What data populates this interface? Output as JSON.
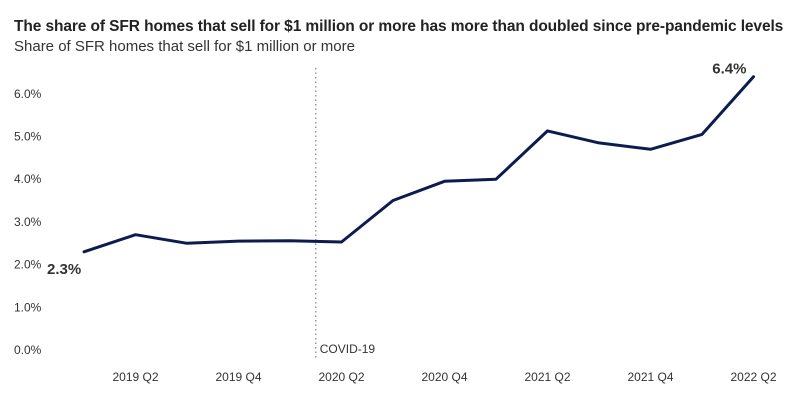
{
  "chart_data": {
    "type": "line",
    "title": "The share of SFR homes that sell for $1 million or more has more than doubled since pre-pandemic levels",
    "subtitle": "Share of SFR homes that sell for $1 million or more",
    "x": [
      "2019 Q1",
      "2019 Q2",
      "2019 Q3",
      "2019 Q4",
      "2020 Q1",
      "2020 Q2",
      "2020 Q3",
      "2020 Q4",
      "2021 Q1",
      "2021 Q2",
      "2021 Q3",
      "2021 Q4",
      "2022 Q1",
      "2022 Q2"
    ],
    "x_tick_labels": [
      "2019 Q2",
      "2019 Q4",
      "2020 Q2",
      "2020 Q4",
      "2021 Q2",
      "2021 Q4",
      "2022 Q2"
    ],
    "series": [
      {
        "values": [
          2.3,
          2.7,
          2.5,
          2.55,
          2.56,
          2.53,
          3.5,
          3.95,
          4.0,
          5.13,
          4.85,
          4.7,
          5.05,
          6.4
        ],
        "color": "#0c1c4f"
      }
    ],
    "ylim": [
      0,
      6.6
    ],
    "y_ticks": [
      "0.0%",
      "1.0%",
      "2.0%",
      "3.0%",
      "4.0%",
      "5.0%",
      "6.0%"
    ],
    "y_tick_values": [
      0,
      1,
      2,
      3,
      4,
      5,
      6
    ],
    "annotation": {
      "label": "COVID-19",
      "x": "2020 Q2",
      "style": "dotted-vertical"
    },
    "data_labels": [
      {
        "x": "2019 Q1",
        "text": "2.3%"
      },
      {
        "x": "2022 Q2",
        "text": "6.4%"
      }
    ],
    "grid": false,
    "legend": "none",
    "xlabel": "",
    "ylabel": ""
  }
}
